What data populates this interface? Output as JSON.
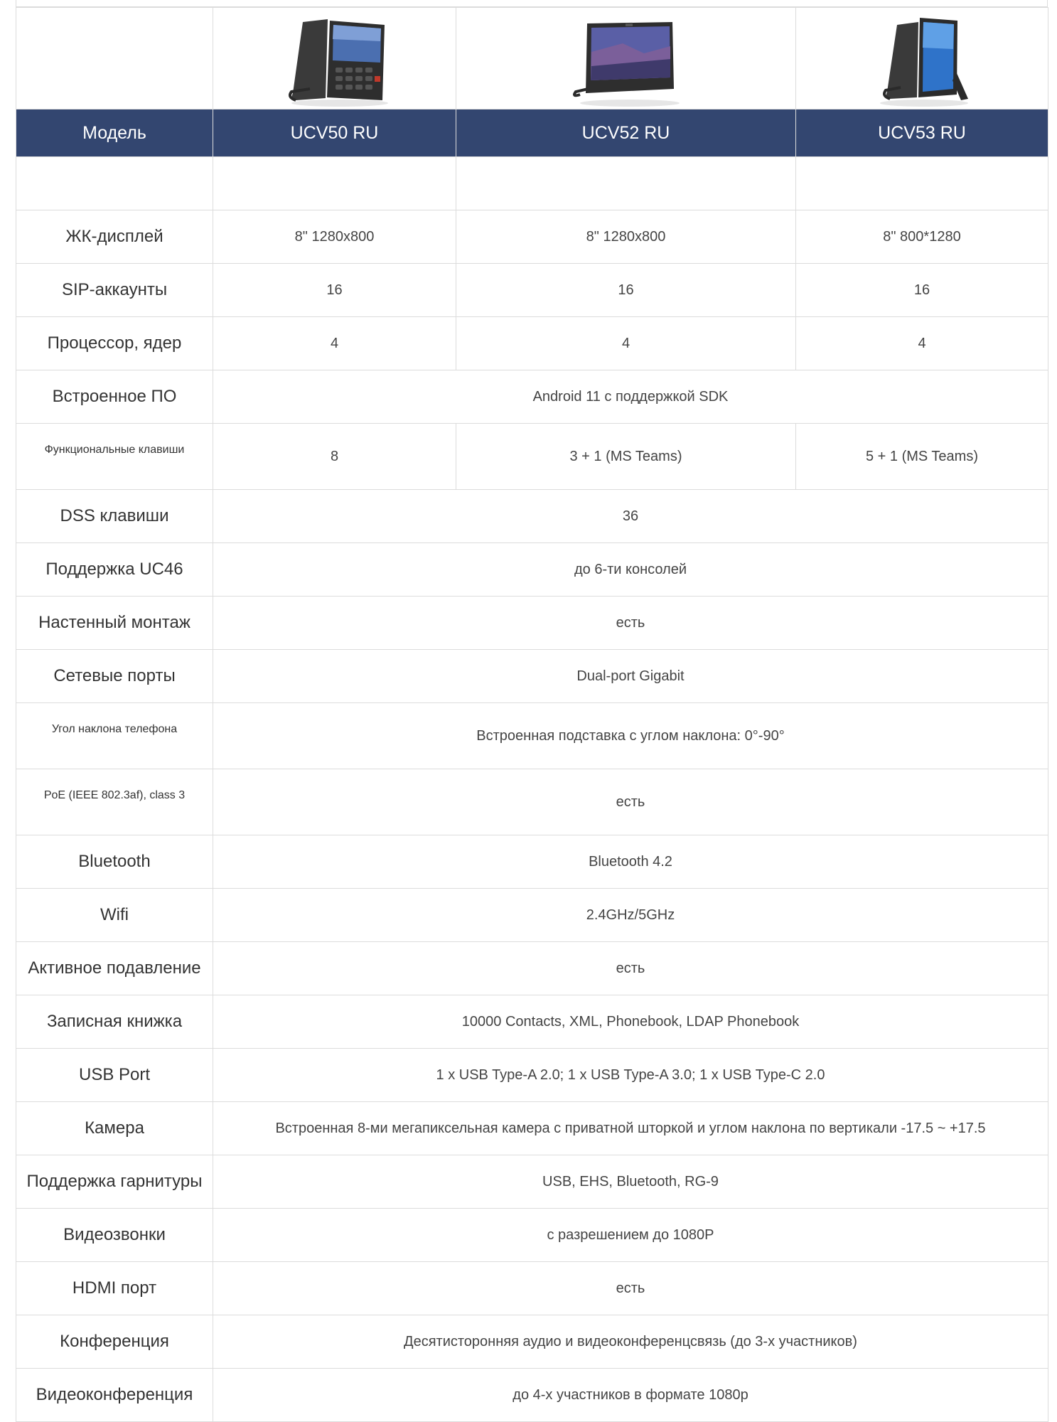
{
  "header": {
    "label": "Модель",
    "models": [
      "UCV50 RU",
      "UCV52 RU",
      "UCV53 RU"
    ]
  },
  "images": [
    {
      "icon": "desk-phone-keypad-icon"
    },
    {
      "icon": "desk-phone-widescreen-icon"
    },
    {
      "icon": "desk-phone-portrait-icon"
    }
  ],
  "rows": [
    {
      "label": "ЖК-дисплей",
      "values": [
        "8\" 1280x800",
        "8\" 1280x800",
        "8\" 800*1280"
      ]
    },
    {
      "label": "SIP-аккаунты",
      "values": [
        "16",
        "16",
        "16"
      ]
    },
    {
      "label": "Процессор, ядер",
      "values": [
        "4",
        "4",
        "4"
      ]
    },
    {
      "label": "Встроенное ПО",
      "value": "Android 11 с поддержкой SDK"
    },
    {
      "label": "Функциональные клавиши",
      "values": [
        "8",
        "3 + 1 (MS Teams)",
        "5 + 1 (MS Teams)"
      ]
    },
    {
      "label": "DSS клавиши",
      "value": "36"
    },
    {
      "label": "Поддержка UC46",
      "value": "до 6-ти консолей"
    },
    {
      "label": "Настенный монтаж",
      "value": "есть"
    },
    {
      "label": "Сетевые  порты",
      "value": "Dual-port Gigabit"
    },
    {
      "label": "Угол наклона телефона",
      "value": "Встроенная подставка с углом наклона: 0°-90°"
    },
    {
      "label": "PoE (IEEE 802.3af), class 3",
      "value": "есть"
    },
    {
      "label": "Bluetooth",
      "value": "Bluetooth 4.2"
    },
    {
      "label": "Wifi",
      "value": "2.4GHz/5GHz"
    },
    {
      "label": "Активное подавление",
      "value": "есть"
    },
    {
      "label": "Записная книжка",
      "value": "10000 Contacts, XML, Phonebook, LDAP Phonebook"
    },
    {
      "label": "USB Port",
      "value": "1 x USB Type-A 2.0; 1 x USB Type-A 3.0; 1 x USB Type-C 2.0"
    },
    {
      "label": "Камера",
      "value": "Встроенная 8-ми мегапиксельная камера с приватной шторкой и углом наклона по вертикали -17.5 ~ +17.5"
    },
    {
      "label": "Поддержка гарнитуры",
      "value": "USB, EHS, Bluetooth, RG-9"
    },
    {
      "label": "Видеозвонки",
      "value": "с разрешением до 1080P"
    },
    {
      "label": "HDMI порт",
      "value": "есть"
    },
    {
      "label": "Конференция",
      "value": "Десятисторонняя аудио и видеоконференцсвязь (до 3-х участников)"
    },
    {
      "label": "Видеоконференция",
      "value": "до 4-х участников в формате 1080р"
    }
  ]
}
